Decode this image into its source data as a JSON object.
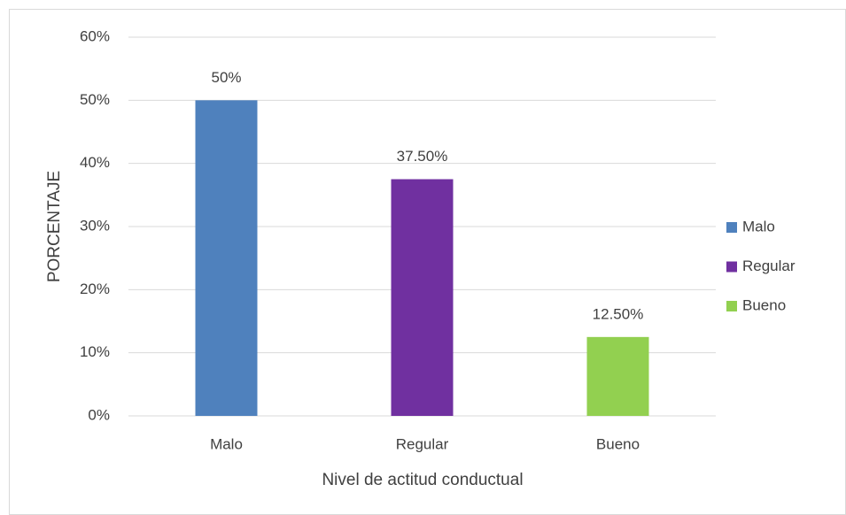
{
  "chart_data": {
    "type": "bar",
    "categories": [
      "Malo",
      "Regular",
      "Bueno"
    ],
    "values": [
      50,
      37.5,
      12.5
    ],
    "value_labels": [
      "50%",
      "37.50%",
      "12.50%"
    ],
    "colors": [
      "#4f81bd",
      "#7030a0",
      "#92d050"
    ],
    "xlabel": "Nivel de actitud conductual",
    "ylabel": "PORCENTAJE",
    "ylim": [
      0,
      60
    ],
    "yticks": [
      {
        "value": 0,
        "label": "0%"
      },
      {
        "value": 10,
        "label": "10%"
      },
      {
        "value": 20,
        "label": "20%"
      },
      {
        "value": 30,
        "label": "30%"
      },
      {
        "value": 40,
        "label": "40%"
      },
      {
        "value": 50,
        "label": "50%"
      },
      {
        "value": 60,
        "label": "60%"
      }
    ],
    "grid": true,
    "legend": "right"
  }
}
